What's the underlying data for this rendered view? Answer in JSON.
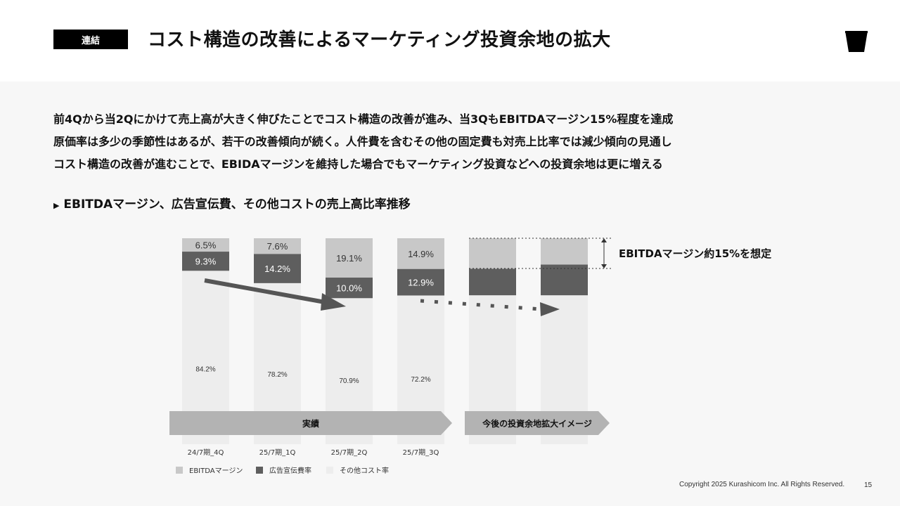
{
  "header": {
    "badge": "連結",
    "title": "コスト構造の改善によるマーケティング投資余地の拡大"
  },
  "description": [
    "前4Qから当2Qにかけて売上高が大きく伸びたことでコスト構造の改善が進み、当3QもEBITDAマージン15%程度を達成",
    "原価率は多少の季節性はあるが、若干の改善傾向が続く。人件費を含むその他の固定費も対売上比率では減少傾向の見通し",
    "コスト構造の改善が進むことで、EBIDAマージンを維持した場合でもマーケティング投資などへの投資余地は更に増える"
  ],
  "subheading": "EBITDAマージン、広告宣伝費、その他コストの売上高比率推移",
  "chart_data": {
    "type": "bar",
    "stacked": true,
    "categories": [
      "24/7期_4Q",
      "25/7期_1Q",
      "25/7期_2Q",
      "25/7期_3Q",
      "",
      ""
    ],
    "series": [
      {
        "name": "その他コスト率",
        "values": [
          84.2,
          78.2,
          70.9,
          72.2,
          72.3,
          72.3
        ],
        "labels": [
          "84.2%",
          "78.2%",
          "70.9%",
          "72.2%",
          "",
          ""
        ]
      },
      {
        "name": "広告宣伝費率",
        "values": [
          9.3,
          14.2,
          10.0,
          12.9,
          12.9,
          14.9
        ],
        "labels": [
          "9.3%",
          "14.2%",
          "10.0%",
          "12.9%",
          "",
          ""
        ]
      },
      {
        "name": "EBITDAマージン",
        "values": [
          6.5,
          7.6,
          19.1,
          14.9,
          14.8,
          12.8
        ],
        "labels": [
          "6.5%",
          "7.6%",
          "19.1%",
          "14.9%",
          "",
          ""
        ]
      }
    ],
    "ylim": [
      0,
      100
    ],
    "colors": {
      "ebitda": "#c8c8c8",
      "ad": "#5e5e5e",
      "other": "#ededed",
      "arrow": "#555555",
      "band": "#b3b3b3"
    },
    "bands": [
      {
        "label": "実績",
        "from": 0,
        "to": 3
      },
      {
        "label": "今後の投資余地拡大イメージ",
        "from": 4,
        "to": 5
      }
    ],
    "annotation": "EBITDAマージン約15%を想定",
    "legend": [
      "EBITDAマージン",
      "広告宣伝費率",
      "その他コスト率"
    ],
    "legend_position": "bottom-left"
  },
  "footer": {
    "copyright": "Copyright 2025 Kurashicom Inc. All Rights Reserved.",
    "page": "15"
  }
}
